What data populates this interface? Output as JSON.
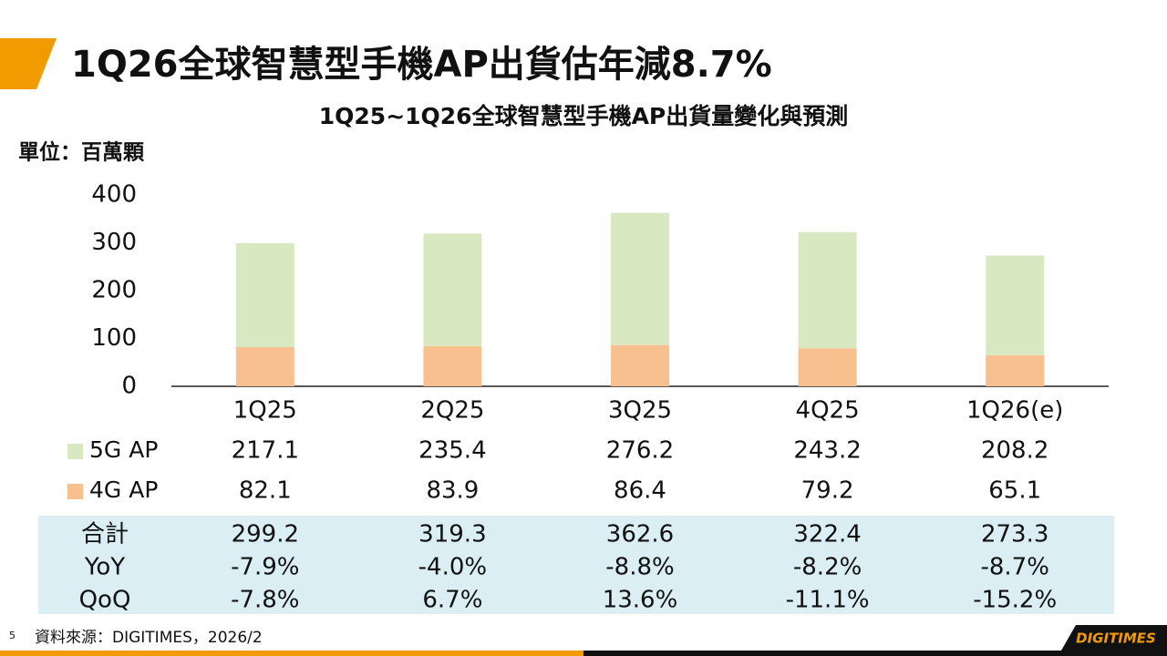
{
  "chart_data": {
    "type": "stacked_bar",
    "title": "1Q26全球智慧型手機AP出貨估年減8.7%",
    "subtitle": "1Q25~1Q26全球智慧型手機AP出貨量變化與預測",
    "unit": "單位：百萬顆",
    "categories": [
      "1Q25",
      "2Q25",
      "3Q25",
      "4Q25",
      "1Q26(e)"
    ],
    "series": [
      {
        "name": "5G AP",
        "color": "#d8e9c2",
        "values": [
          217.1,
          235.4,
          276.2,
          243.2,
          208.2
        ]
      },
      {
        "name": "4G AP",
        "color": "#f9c08f",
        "values": [
          82.1,
          83.9,
          86.4,
          79.2,
          65.1
        ]
      }
    ],
    "ylim": [
      0,
      400
    ],
    "yticks": [
      0,
      100,
      200,
      300,
      400
    ],
    "summary": [
      {
        "label": "合計",
        "values": [
          299.2,
          319.3,
          362.6,
          322.4,
          273.3
        ]
      },
      {
        "label": "YoY",
        "values": [
          -7.9,
          -4.0,
          -8.8,
          -8.2,
          -8.7
        ],
        "value_labels": [
          "-7.9%",
          "-4.0%",
          "-8.8%",
          "-8.2%",
          "-8.7%"
        ]
      },
      {
        "label": "QoQ",
        "values": [
          -7.8,
          6.7,
          13.6,
          -11.1,
          -15.2
        ],
        "value_labels": [
          "-7.8%",
          "6.7%",
          "13.6%",
          "-11.1%",
          "-15.2%"
        ]
      }
    ]
  },
  "page_number": "5",
  "source": "資料來源：DIGITIMES，2026/2",
  "logo": "DIGITIMES"
}
